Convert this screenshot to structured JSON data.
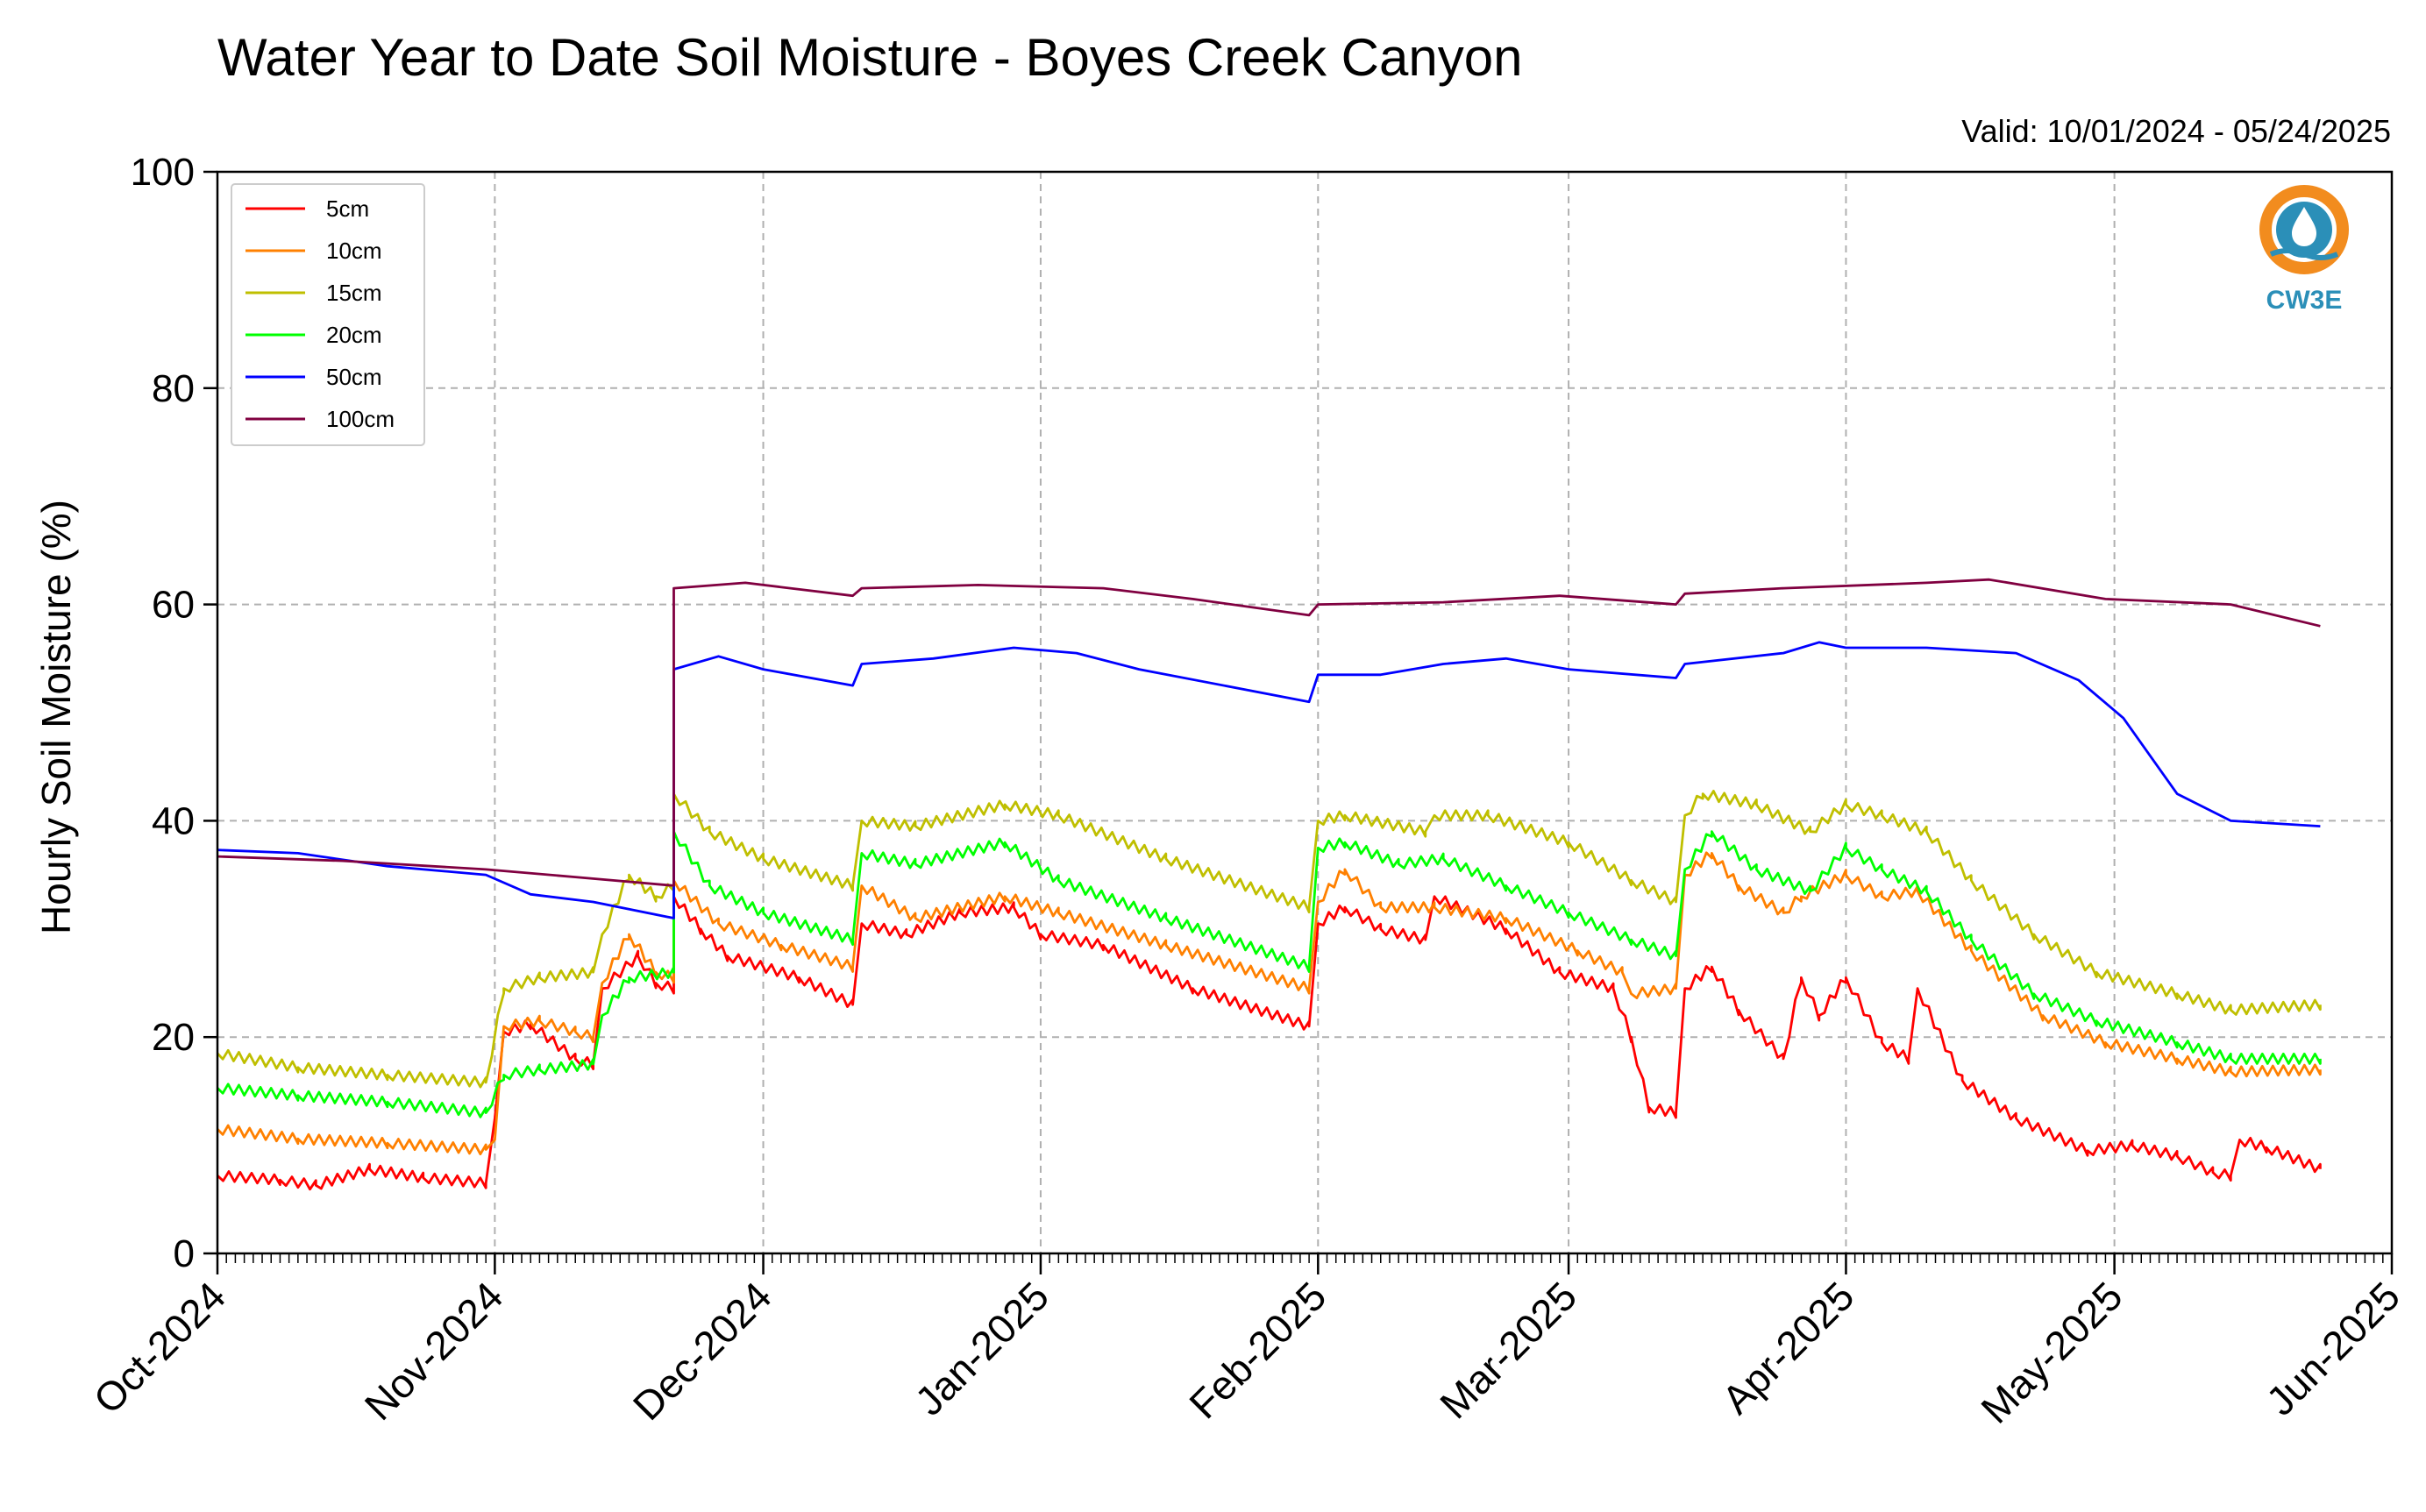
{
  "chart_data": {
    "type": "line",
    "title": "Water Year to Date Soil Moisture - Boyes Creek Canyon",
    "subtitle": "Valid: 10/01/2024 - 05/24/2025",
    "ylabel": "Hourly Soil Moisture (%)",
    "xlabel": "",
    "x_range": [
      "2024-10-01",
      "2025-06-01"
    ],
    "ylim": [
      0,
      100
    ],
    "yticks": [
      0,
      20,
      40,
      60,
      80,
      100
    ],
    "xticks": [
      {
        "date": "2024-10-01",
        "label": "Oct-2024"
      },
      {
        "date": "2024-11-01",
        "label": "Nov-2024"
      },
      {
        "date": "2024-12-01",
        "label": "Dec-2024"
      },
      {
        "date": "2025-01-01",
        "label": "Jan-2025"
      },
      {
        "date": "2025-02-01",
        "label": "Feb-2025"
      },
      {
        "date": "2025-03-01",
        "label": "Mar-2025"
      },
      {
        "date": "2025-04-01",
        "label": "Apr-2025"
      },
      {
        "date": "2025-05-01",
        "label": "May-2025"
      },
      {
        "date": "2025-06-01",
        "label": "Jun-2025"
      }
    ],
    "grid": true,
    "legend_position": "top-left",
    "series": [
      {
        "name": "5cm",
        "color": "#ff0000",
        "points": [
          [
            "2024-10-01",
            7.2
          ],
          [
            "2024-10-08",
            6.8
          ],
          [
            "2024-10-12",
            6.3
          ],
          [
            "2024-10-18",
            7.8
          ],
          [
            "2024-10-24",
            7.0
          ],
          [
            "2024-10-31",
            6.5
          ],
          [
            "2024-11-01",
            12.5
          ],
          [
            "2024-11-02",
            20.5
          ],
          [
            "2024-11-05",
            21.2
          ],
          [
            "2024-11-10",
            18.0
          ],
          [
            "2024-11-12",
            17.5
          ],
          [
            "2024-11-13",
            24.5
          ],
          [
            "2024-11-17",
            27.5
          ],
          [
            "2024-11-19",
            25.0
          ],
          [
            "2024-11-21",
            24.5
          ],
          [
            "2024-11-21",
            33.0
          ],
          [
            "2024-11-24",
            30.0
          ],
          [
            "2024-11-27",
            27.5
          ],
          [
            "2024-12-05",
            25.5
          ],
          [
            "2024-12-11",
            23.0
          ],
          [
            "2024-12-12",
            30.5
          ],
          [
            "2024-12-17",
            29.5
          ],
          [
            "2024-12-23",
            31.5
          ],
          [
            "2024-12-29",
            32.0
          ],
          [
            "2025-01-01",
            29.5
          ],
          [
            "2025-01-08",
            28.5
          ],
          [
            "2025-01-18",
            24.5
          ],
          [
            "2025-01-31",
            21.0
          ],
          [
            "2025-02-01",
            30.5
          ],
          [
            "2025-02-04",
            32.0
          ],
          [
            "2025-02-08",
            30.0
          ],
          [
            "2025-02-13",
            29.0
          ],
          [
            "2025-02-14",
            33.0
          ],
          [
            "2025-02-22",
            30.0
          ],
          [
            "2025-02-28",
            26.0
          ],
          [
            "2025-03-06",
            24.5
          ],
          [
            "2025-03-08",
            20.0
          ],
          [
            "2025-03-10",
            13.5
          ],
          [
            "2025-03-13",
            13.0
          ],
          [
            "2025-03-14",
            24.5
          ],
          [
            "2025-03-17",
            26.5
          ],
          [
            "2025-03-20",
            22.5
          ],
          [
            "2025-03-25",
            18.0
          ],
          [
            "2025-03-27",
            25.5
          ],
          [
            "2025-03-29",
            22.0
          ],
          [
            "2025-04-01",
            25.5
          ],
          [
            "2025-04-05",
            19.5
          ],
          [
            "2025-04-08",
            18.0
          ],
          [
            "2025-04-09",
            24.5
          ],
          [
            "2025-04-14",
            16.0
          ],
          [
            "2025-04-20",
            12.5
          ],
          [
            "2025-04-28",
            9.5
          ],
          [
            "2025-05-03",
            10.0
          ],
          [
            "2025-05-08",
            9.0
          ],
          [
            "2025-05-12",
            7.5
          ],
          [
            "2025-05-14",
            7.2
          ],
          [
            "2025-05-15",
            10.5
          ],
          [
            "2025-05-18",
            9.8
          ],
          [
            "2025-05-24",
            7.8
          ]
        ]
      },
      {
        "name": "10cm",
        "color": "#ff8000",
        "points": [
          [
            "2024-10-01",
            11.5
          ],
          [
            "2024-10-10",
            10.6
          ],
          [
            "2024-10-20",
            10.2
          ],
          [
            "2024-10-31",
            9.6
          ],
          [
            "2024-11-01",
            10.5
          ],
          [
            "2024-11-02",
            21.0
          ],
          [
            "2024-11-06",
            21.5
          ],
          [
            "2024-11-10",
            20.5
          ],
          [
            "2024-11-12",
            20.0
          ],
          [
            "2024-11-13",
            25.0
          ],
          [
            "2024-11-16",
            29.5
          ],
          [
            "2024-11-19",
            26.0
          ],
          [
            "2024-11-21",
            25.5
          ],
          [
            "2024-11-21",
            34.5
          ],
          [
            "2024-11-26",
            30.5
          ],
          [
            "2024-12-03",
            28.5
          ],
          [
            "2024-12-11",
            26.5
          ],
          [
            "2024-12-12",
            34.0
          ],
          [
            "2024-12-18",
            31.0
          ],
          [
            "2024-12-28",
            33.0
          ],
          [
            "2025-01-03",
            31.5
          ],
          [
            "2025-01-15",
            28.5
          ],
          [
            "2025-01-31",
            24.5
          ],
          [
            "2025-02-01",
            32.5
          ],
          [
            "2025-02-04",
            35.5
          ],
          [
            "2025-02-08",
            32.0
          ],
          [
            "2025-02-14",
            32.0
          ],
          [
            "2025-02-22",
            31.0
          ],
          [
            "2025-03-02",
            28.0
          ],
          [
            "2025-03-07",
            26.0
          ],
          [
            "2025-03-08",
            24.0
          ],
          [
            "2025-03-13",
            24.5
          ],
          [
            "2025-03-14",
            35.0
          ],
          [
            "2025-03-17",
            37.0
          ],
          [
            "2025-03-20",
            34.0
          ],
          [
            "2025-03-25",
            31.5
          ],
          [
            "2025-03-27",
            33.0
          ],
          [
            "2025-04-01",
            35.0
          ],
          [
            "2025-04-05",
            33.0
          ],
          [
            "2025-04-09",
            33.5
          ],
          [
            "2025-04-15",
            28.0
          ],
          [
            "2025-04-23",
            22.0
          ],
          [
            "2025-04-30",
            19.5
          ],
          [
            "2025-05-08",
            18.0
          ],
          [
            "2025-05-14",
            16.8
          ],
          [
            "2025-05-24",
            17.0
          ]
        ]
      },
      {
        "name": "15cm",
        "color": "#bfbf00",
        "points": [
          [
            "2024-10-01",
            18.5
          ],
          [
            "2024-10-10",
            17.2
          ],
          [
            "2024-10-20",
            16.5
          ],
          [
            "2024-10-31",
            15.8
          ],
          [
            "2024-11-02",
            24.5
          ],
          [
            "2024-11-06",
            25.5
          ],
          [
            "2024-11-12",
            26.0
          ],
          [
            "2024-11-13",
            29.5
          ],
          [
            "2024-11-16",
            35.0
          ],
          [
            "2024-11-19",
            33.0
          ],
          [
            "2024-11-21",
            34.0
          ],
          [
            "2024-11-21",
            42.5
          ],
          [
            "2024-11-25",
            39.0
          ],
          [
            "2024-12-01",
            36.5
          ],
          [
            "2024-12-11",
            34.0
          ],
          [
            "2024-12-12",
            40.0
          ],
          [
            "2024-12-18",
            39.5
          ],
          [
            "2024-12-28",
            41.5
          ],
          [
            "2025-01-03",
            40.5
          ],
          [
            "2025-01-15",
            36.5
          ],
          [
            "2025-01-31",
            32.0
          ],
          [
            "2025-02-01",
            40.0
          ],
          [
            "2025-02-04",
            40.5
          ],
          [
            "2025-02-13",
            39.0
          ],
          [
            "2025-02-14",
            40.5
          ],
          [
            "2025-02-20",
            40.5
          ],
          [
            "2025-03-01",
            38.0
          ],
          [
            "2025-03-08",
            34.5
          ],
          [
            "2025-03-13",
            32.5
          ],
          [
            "2025-03-14",
            40.5
          ],
          [
            "2025-03-16",
            42.5
          ],
          [
            "2025-03-22",
            41.5
          ],
          [
            "2025-03-28",
            39.0
          ],
          [
            "2025-04-01",
            41.5
          ],
          [
            "2025-04-05",
            40.5
          ],
          [
            "2025-04-10",
            39.0
          ],
          [
            "2025-04-15",
            34.5
          ],
          [
            "2025-04-22",
            29.5
          ],
          [
            "2025-04-29",
            26.0
          ],
          [
            "2025-05-08",
            24.0
          ],
          [
            "2025-05-14",
            22.5
          ],
          [
            "2025-05-24",
            23.0
          ]
        ]
      },
      {
        "name": "20cm",
        "color": "#00ff00",
        "points": [
          [
            "2024-10-01",
            15.3
          ],
          [
            "2024-10-10",
            14.6
          ],
          [
            "2024-10-20",
            14.0
          ],
          [
            "2024-10-31",
            13.0
          ],
          [
            "2024-11-02",
            16.5
          ],
          [
            "2024-11-06",
            17.0
          ],
          [
            "2024-11-12",
            17.5
          ],
          [
            "2024-11-13",
            22.0
          ],
          [
            "2024-11-16",
            25.5
          ],
          [
            "2024-11-21",
            26.0
          ],
          [
            "2024-11-21",
            39.0
          ],
          [
            "2024-11-25",
            34.0
          ],
          [
            "2024-12-01",
            31.5
          ],
          [
            "2024-12-11",
            29.0
          ],
          [
            "2024-12-12",
            37.0
          ],
          [
            "2024-12-18",
            36.0
          ],
          [
            "2024-12-28",
            38.0
          ],
          [
            "2025-01-03",
            34.5
          ],
          [
            "2025-01-15",
            31.0
          ],
          [
            "2025-01-31",
            26.5
          ],
          [
            "2025-02-01",
            37.5
          ],
          [
            "2025-02-04",
            38.0
          ],
          [
            "2025-02-10",
            36.0
          ],
          [
            "2025-02-15",
            36.5
          ],
          [
            "2025-02-22",
            34.0
          ],
          [
            "2025-03-01",
            31.5
          ],
          [
            "2025-03-08",
            29.0
          ],
          [
            "2025-03-13",
            27.5
          ],
          [
            "2025-03-14",
            35.5
          ],
          [
            "2025-03-17",
            39.0
          ],
          [
            "2025-03-22",
            35.5
          ],
          [
            "2025-03-28",
            33.5
          ],
          [
            "2025-04-01",
            37.5
          ],
          [
            "2025-04-05",
            35.5
          ],
          [
            "2025-04-10",
            33.5
          ],
          [
            "2025-04-15",
            29.0
          ],
          [
            "2025-04-22",
            24.0
          ],
          [
            "2025-04-29",
            21.5
          ],
          [
            "2025-05-08",
            19.5
          ],
          [
            "2025-05-14",
            18.0
          ],
          [
            "2025-05-24",
            18.0
          ]
        ]
      },
      {
        "name": "50cm",
        "color": "#0000ff",
        "points": [
          [
            "2024-10-01",
            37.3
          ],
          [
            "2024-10-10",
            37.0
          ],
          [
            "2024-10-20",
            35.8
          ],
          [
            "2024-10-31",
            35.0
          ],
          [
            "2024-11-05",
            33.2
          ],
          [
            "2024-11-12",
            32.5
          ],
          [
            "2024-11-21",
            31.0
          ],
          [
            "2024-11-21",
            54.0
          ],
          [
            "2024-11-26",
            55.2
          ],
          [
            "2024-12-01",
            54.0
          ],
          [
            "2024-12-11",
            52.5
          ],
          [
            "2024-12-12",
            54.5
          ],
          [
            "2024-12-20",
            55.0
          ],
          [
            "2024-12-29",
            56.0
          ],
          [
            "2025-01-05",
            55.5
          ],
          [
            "2025-01-12",
            54.0
          ],
          [
            "2025-01-31",
            51.0
          ],
          [
            "2025-02-01",
            53.5
          ],
          [
            "2025-02-08",
            53.5
          ],
          [
            "2025-02-15",
            54.5
          ],
          [
            "2025-02-22",
            55.0
          ],
          [
            "2025-03-01",
            54.0
          ],
          [
            "2025-03-13",
            53.2
          ],
          [
            "2025-03-14",
            54.5
          ],
          [
            "2025-03-25",
            55.5
          ],
          [
            "2025-03-29",
            56.5
          ],
          [
            "2025-04-01",
            56.0
          ],
          [
            "2025-04-10",
            56.0
          ],
          [
            "2025-04-20",
            55.5
          ],
          [
            "2025-04-27",
            53.0
          ],
          [
            "2025-05-02",
            49.5
          ],
          [
            "2025-05-08",
            42.5
          ],
          [
            "2025-05-14",
            40.0
          ],
          [
            "2025-05-24",
            39.5
          ]
        ]
      },
      {
        "name": "100cm",
        "color": "#800040",
        "points": [
          [
            "2024-10-01",
            36.7
          ],
          [
            "2024-10-15",
            36.3
          ],
          [
            "2024-10-31",
            35.5
          ],
          [
            "2024-11-10",
            34.8
          ],
          [
            "2024-11-21",
            34.0
          ],
          [
            "2024-11-21",
            61.5
          ],
          [
            "2024-11-29",
            62.0
          ],
          [
            "2024-12-11",
            60.8
          ],
          [
            "2024-12-12",
            61.5
          ],
          [
            "2024-12-25",
            61.8
          ],
          [
            "2025-01-08",
            61.5
          ],
          [
            "2025-01-18",
            60.5
          ],
          [
            "2025-01-31",
            59.0
          ],
          [
            "2025-02-01",
            60.0
          ],
          [
            "2025-02-15",
            60.2
          ],
          [
            "2025-02-28",
            60.8
          ],
          [
            "2025-03-13",
            60.0
          ],
          [
            "2025-03-14",
            61.0
          ],
          [
            "2025-03-25",
            61.5
          ],
          [
            "2025-04-10",
            62.0
          ],
          [
            "2025-04-17",
            62.3
          ],
          [
            "2025-04-30",
            60.5
          ],
          [
            "2025-05-14",
            60.0
          ],
          [
            "2025-05-24",
            58.0
          ]
        ]
      }
    ]
  },
  "logo": {
    "text": "CW3E",
    "ring_color": "#f28c1e",
    "wave_color": "#2b8fb8"
  }
}
